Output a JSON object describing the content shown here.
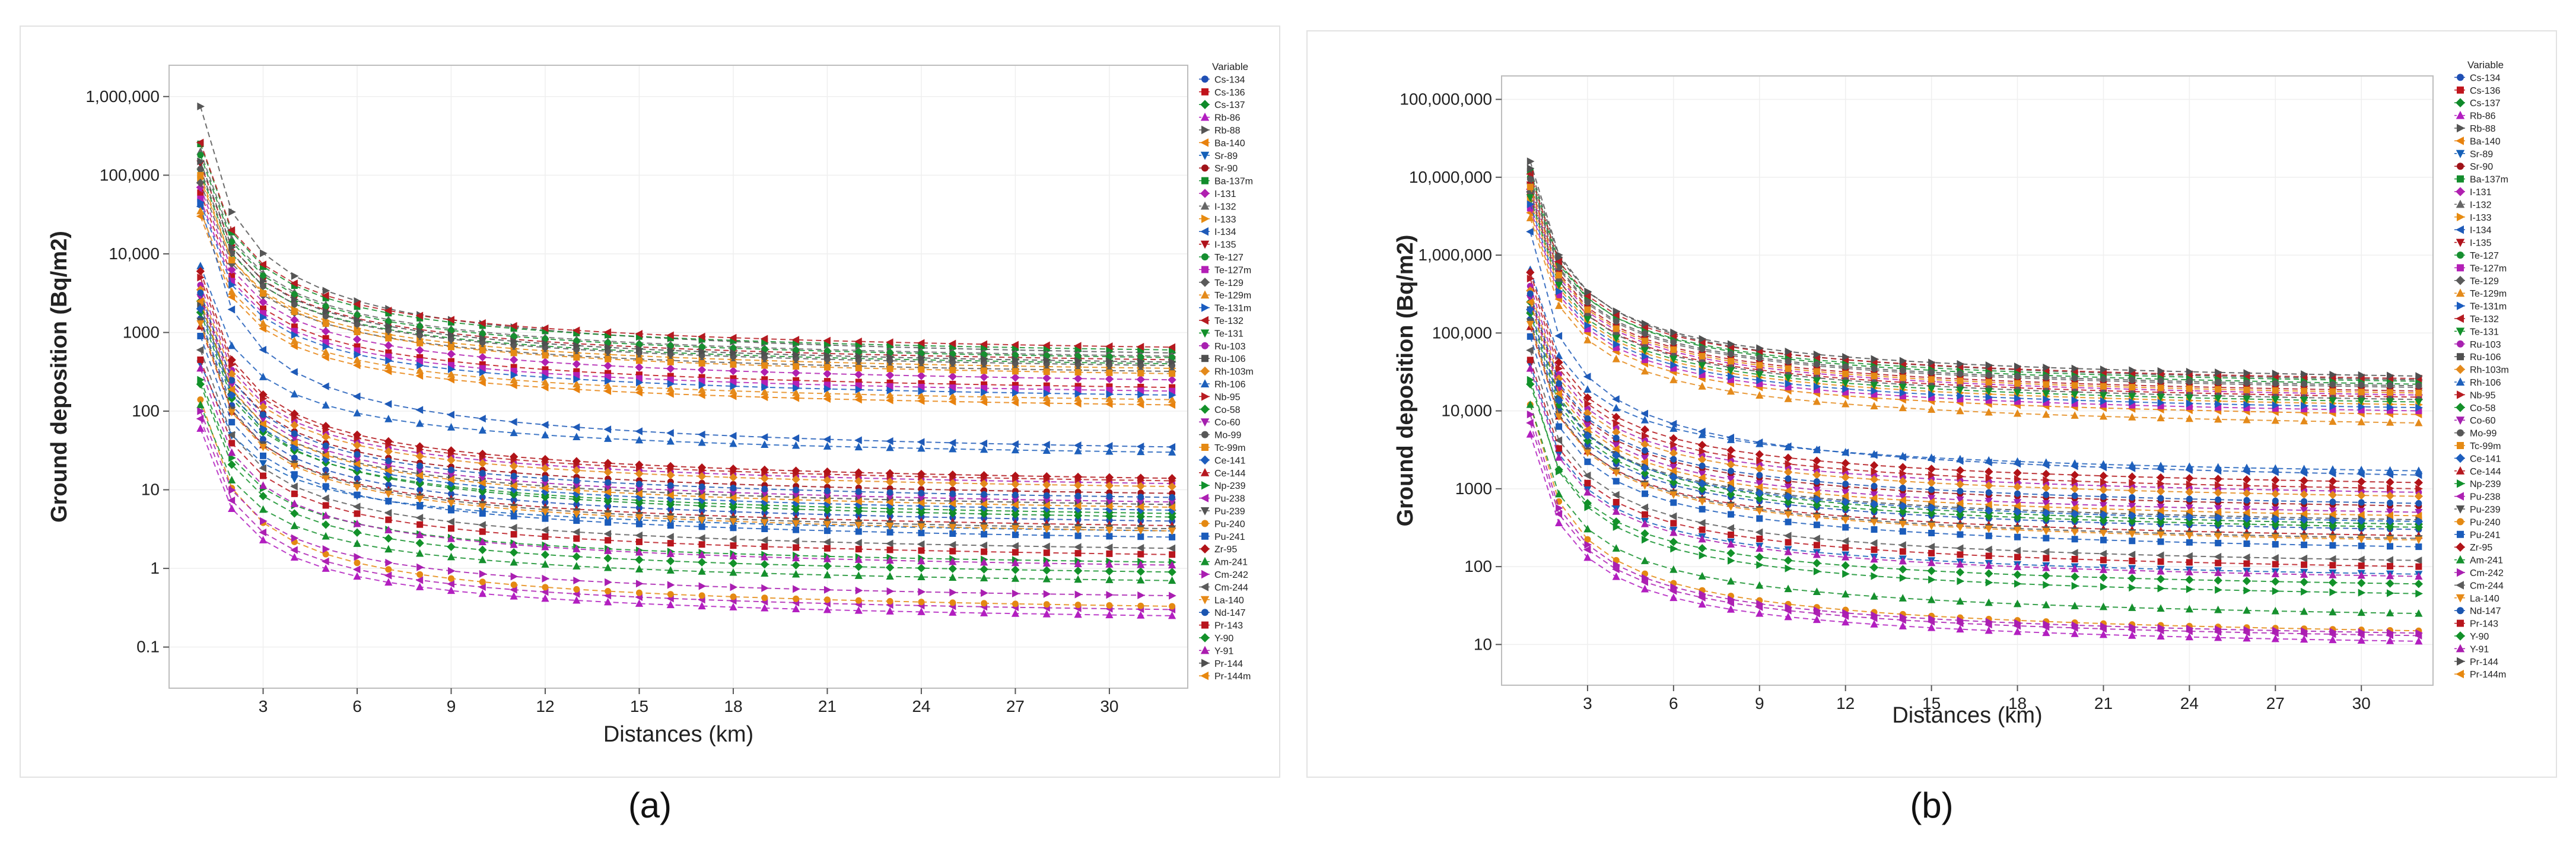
{
  "legend_title": "Variable",
  "axis_x_label": "Distances (km)",
  "axis_y_label": "Ground deposition (Bq/m2)",
  "x_ticks": [
    3,
    6,
    9,
    12,
    15,
    18,
    21,
    24,
    27,
    30
  ],
  "chart_data": [
    {
      "type": "line",
      "panel_label": "(a)",
      "xlabel": "Distances (km)",
      "ylabel": "Ground deposition (Bq/m2)",
      "yscale": "log",
      "xlim": [
        0,
        32.5
      ],
      "ylim": [
        0.03,
        2500000
      ],
      "y_tick_values": [
        0.1,
        1,
        10,
        100,
        1000,
        10000,
        100000,
        1000000
      ],
      "y_tick_labels": [
        "0.1",
        "1",
        "10",
        "100",
        "1000",
        "10,000",
        "100,000",
        "1,000,000"
      ],
      "x": [
        1,
        2,
        3,
        4,
        5,
        6,
        7,
        8,
        9,
        10,
        11,
        12,
        13,
        14,
        15,
        16,
        17,
        18,
        19,
        20,
        21,
        22,
        23,
        24,
        25,
        26,
        27,
        28,
        29,
        30,
        31,
        32
      ],
      "falloff": 0.72,
      "series": [
        {
          "name": "Cs-134",
          "v1": 1500,
          "v32": 4
        },
        {
          "name": "Cs-136",
          "v1": 60000,
          "v32": 200
        },
        {
          "name": "Cs-137",
          "v1": 2500,
          "v32": 4.5
        },
        {
          "name": "Rb-86",
          "v1": 60,
          "v32": 0.25
        },
        {
          "name": "Rb-88",
          "v1": 750000,
          "v32": 550
        },
        {
          "name": "Ba-140",
          "v1": 30000,
          "v32": 120
        },
        {
          "name": "Sr-89",
          "v1": 400,
          "v32": 3
        },
        {
          "name": "Sr-90",
          "v1": 3000,
          "v32": 9
        },
        {
          "name": "Ba-137m",
          "v1": 250000,
          "v32": 600
        },
        {
          "name": "I-131",
          "v1": 70000,
          "v32": 250
        },
        {
          "name": "I-132",
          "v1": 200000,
          "v32": 500
        },
        {
          "name": "I-133",
          "v1": 90000,
          "v32": 350
        },
        {
          "name": "I-134",
          "v1": 40000,
          "v32": 35
        },
        {
          "name": "I-135",
          "v1": 140000,
          "v32": 450
        },
        {
          "name": "Te-127",
          "v1": 180000,
          "v32": 480
        },
        {
          "name": "Te-127m",
          "v1": 50000,
          "v32": 180
        },
        {
          "name": "Te-129",
          "v1": 80000,
          "v32": 320
        },
        {
          "name": "Te-129m",
          "v1": 35000,
          "v32": 140
        },
        {
          "name": "Te-131m",
          "v1": 45000,
          "v32": 160
        },
        {
          "name": "Te-132",
          "v1": 260000,
          "v32": 650
        },
        {
          "name": "Te-131",
          "v1": 110000,
          "v32": 400
        },
        {
          "name": "Ru-103",
          "v1": 4000,
          "v32": 12
        },
        {
          "name": "Ru-106",
          "v1": 2200,
          "v32": 6.5
        },
        {
          "name": "Rh-103m",
          "v1": 3500,
          "v32": 11
        },
        {
          "name": "Rh-106",
          "v1": 7000,
          "v32": 30
        },
        {
          "name": "Nb-95",
          "v1": 5000,
          "v32": 13
        },
        {
          "name": "Co-58",
          "v1": 1800,
          "v32": 5
        },
        {
          "name": "Co-60",
          "v1": 2800,
          "v32": 7
        },
        {
          "name": "Mo-99",
          "v1": 120000,
          "v32": 380
        },
        {
          "name": "Tc-99m",
          "v1": 100000,
          "v32": 300
        },
        {
          "name": "Ce-141",
          "v1": 2000,
          "v32": 5.5
        },
        {
          "name": "Ce-144",
          "v1": 1200,
          "v32": 3.5
        },
        {
          "name": "Np-239",
          "v1": 250,
          "v32": 1.2
        },
        {
          "name": "Pu-238",
          "v1": 80,
          "v32": 0.3
        },
        {
          "name": "Pu-239",
          "v1": 1400,
          "v32": 3.2
        },
        {
          "name": "Pu-240",
          "v1": 140,
          "v32": 0.33
        },
        {
          "name": "Pu-241",
          "v1": 900,
          "v32": 2.5
        },
        {
          "name": "Zr-95",
          "v1": 6000,
          "v32": 14
        },
        {
          "name": "Am-241",
          "v1": 120,
          "v32": 0.7
        },
        {
          "name": "Cm-242",
          "v1": 100,
          "v32": 0.45
        },
        {
          "name": "Cm-244",
          "v1": 600,
          "v32": 1.8
        },
        {
          "name": "La-140",
          "v1": 1300,
          "v32": 3
        },
        {
          "name": "Nd-147",
          "v1": 3200,
          "v32": 8
        },
        {
          "name": "Pr-143",
          "v1": 450,
          "v32": 1.5
        },
        {
          "name": "Y-90",
          "v1": 220,
          "v32": 0.9
        },
        {
          "name": "Y-91",
          "v1": 350,
          "v32": 1.1
        },
        {
          "name": "Pr-144",
          "v1": 150000,
          "v32": 420
        },
        {
          "name": "Pr-144m",
          "v1": 2500,
          "v32": 6
        }
      ]
    },
    {
      "type": "line",
      "panel_label": "(b)",
      "xlabel": "Distances (km)",
      "ylabel": "Ground deposition (Bq/m2)",
      "yscale": "log",
      "xlim": [
        0,
        32.5
      ],
      "ylim": [
        3,
        200000000
      ],
      "y_tick_values": [
        10,
        100,
        1000,
        10000,
        100000,
        1000000,
        10000000,
        100000000
      ],
      "y_tick_labels": [
        "10",
        "100",
        "1000",
        "10,000",
        "100,000",
        "1,000,000",
        "10,000,000",
        "100,000,000"
      ],
      "x": [
        1,
        2,
        3,
        4,
        5,
        6,
        7,
        8,
        9,
        10,
        11,
        12,
        13,
        14,
        15,
        16,
        17,
        18,
        19,
        20,
        21,
        22,
        23,
        24,
        25,
        26,
        27,
        28,
        29,
        30,
        31,
        32
      ],
      "falloff": 0.72,
      "series": [
        {
          "name": "Cs-134",
          "v1": 150000,
          "v32": 300
        },
        {
          "name": "Cs-136",
          "v1": 6000000,
          "v32": 15000
        },
        {
          "name": "Cs-137",
          "v1": 250000,
          "v32": 350
        },
        {
          "name": "Rb-86",
          "v1": 5000,
          "v32": 11
        },
        {
          "name": "Rb-88",
          "v1": 16000000,
          "v32": 25000
        },
        {
          "name": "Ba-140",
          "v1": 3500000,
          "v32": 9000
        },
        {
          "name": "Sr-89",
          "v1": 40000,
          "v32": 80
        },
        {
          "name": "Sr-90",
          "v1": 300000,
          "v32": 600
        },
        {
          "name": "Ba-137m",
          "v1": 12000000,
          "v32": 22000
        },
        {
          "name": "I-131",
          "v1": 7000000,
          "v32": 16000
        },
        {
          "name": "I-132",
          "v1": 9000000,
          "v32": 20000
        },
        {
          "name": "I-133",
          "v1": 5000000,
          "v32": 12000
        },
        {
          "name": "I-134",
          "v1": 2000000,
          "v32": 1500
        },
        {
          "name": "I-135",
          "v1": 8000000,
          "v32": 18000
        },
        {
          "name": "Te-127",
          "v1": 10000000,
          "v32": 24000
        },
        {
          "name": "Te-127m",
          "v1": 4000000,
          "v32": 10000
        },
        {
          "name": "Te-129",
          "v1": 6500000,
          "v32": 14000
        },
        {
          "name": "Te-129m",
          "v1": 3000000,
          "v32": 7000
        },
        {
          "name": "Te-131m",
          "v1": 4500000,
          "v32": 11000
        },
        {
          "name": "Te-132",
          "v1": 11000000,
          "v32": 26000
        },
        {
          "name": "Te-131",
          "v1": 5500000,
          "v32": 13000
        },
        {
          "name": "Ru-103",
          "v1": 400000,
          "v32": 900
        },
        {
          "name": "Ru-106",
          "v1": 200000,
          "v32": 400
        },
        {
          "name": "Rh-103m",
          "v1": 350000,
          "v32": 800
        },
        {
          "name": "Rh-106",
          "v1": 650000,
          "v32": 1700
        },
        {
          "name": "Nb-95",
          "v1": 500000,
          "v32": 1000
        },
        {
          "name": "Co-58",
          "v1": 180000,
          "v32": 320
        },
        {
          "name": "Co-60",
          "v1": 280000,
          "v32": 500
        },
        {
          "name": "Mo-99",
          "v1": 9500000,
          "v32": 21000
        },
        {
          "name": "Tc-99m",
          "v1": 7500000,
          "v32": 17000
        },
        {
          "name": "Ce-141",
          "v1": 200000,
          "v32": 380
        },
        {
          "name": "Ce-144",
          "v1": 120000,
          "v32": 250
        },
        {
          "name": "Np-239",
          "v1": 25000,
          "v32": 45
        },
        {
          "name": "Pu-238",
          "v1": 7000,
          "v32": 13
        },
        {
          "name": "Pu-239",
          "v1": 140000,
          "v32": 230
        },
        {
          "name": "Pu-240",
          "v1": 12000,
          "v32": 15
        },
        {
          "name": "Pu-241",
          "v1": 90000,
          "v32": 180
        },
        {
          "name": "Zr-95",
          "v1": 600000,
          "v32": 1200
        },
        {
          "name": "Am-241",
          "v1": 12000,
          "v32": 25
        },
        {
          "name": "Cm-242",
          "v1": 9000,
          "v32": 14
        },
        {
          "name": "Cm-244",
          "v1": 60000,
          "v32": 120
        },
        {
          "name": "La-140",
          "v1": 130000,
          "v32": 220
        },
        {
          "name": "Nd-147",
          "v1": 320000,
          "v32": 650
        },
        {
          "name": "Pr-143",
          "v1": 45000,
          "v32": 100
        },
        {
          "name": "Y-90",
          "v1": 22000,
          "v32": 60
        },
        {
          "name": "Y-91",
          "v1": 35000,
          "v32": 75
        },
        {
          "name": "Pr-144",
          "v1": 13000000,
          "v32": 28000
        },
        {
          "name": "Pr-144m",
          "v1": 250000,
          "v32": 450
        }
      ]
    }
  ],
  "legend_styles": [
    {
      "color": "#1f4fb4",
      "marker": "circle"
    },
    {
      "color": "#c0141c",
      "marker": "square"
    },
    {
      "color": "#0f8a2a",
      "marker": "diamond"
    },
    {
      "color": "#b21ec0",
      "marker": "triangle-up"
    },
    {
      "color": "#555555",
      "marker": "triangle-right"
    },
    {
      "color": "#e8820e",
      "marker": "triangle-left"
    },
    {
      "color": "#1560b8",
      "marker": "triangle-down"
    },
    {
      "color": "#a01218",
      "marker": "circle"
    },
    {
      "color": "#138c2c",
      "marker": "square"
    },
    {
      "color": "#b020b0",
      "marker": "diamond"
    },
    {
      "color": "#666666",
      "marker": "triangle-up"
    },
    {
      "color": "#e78b10",
      "marker": "triangle-right"
    },
    {
      "color": "#1e5ab8",
      "marker": "triangle-left"
    },
    {
      "color": "#b0121b",
      "marker": "triangle-down"
    },
    {
      "color": "#168f30",
      "marker": "circle"
    },
    {
      "color": "#b31fb6",
      "marker": "square"
    },
    {
      "color": "#5a5a5a",
      "marker": "diamond"
    },
    {
      "color": "#e48a1a",
      "marker": "triangle-up"
    },
    {
      "color": "#1a5cc0",
      "marker": "triangle-right"
    },
    {
      "color": "#b51a20",
      "marker": "triangle-left"
    },
    {
      "color": "#12902a",
      "marker": "triangle-down"
    },
    {
      "color": "#a821b0",
      "marker": "circle"
    },
    {
      "color": "#505050",
      "marker": "square"
    },
    {
      "color": "#e3891b",
      "marker": "diamond"
    },
    {
      "color": "#1e60bc",
      "marker": "triangle-up"
    },
    {
      "color": "#b81c22",
      "marker": "triangle-right"
    },
    {
      "color": "#139029",
      "marker": "diamond"
    },
    {
      "color": "#a41fae",
      "marker": "triangle-down"
    },
    {
      "color": "#585858",
      "marker": "circle"
    },
    {
      "color": "#e58a14",
      "marker": "square"
    },
    {
      "color": "#1c5dbd",
      "marker": "diamond"
    },
    {
      "color": "#b6171e",
      "marker": "triangle-up"
    },
    {
      "color": "#11912c",
      "marker": "triangle-right"
    },
    {
      "color": "#ad20b3",
      "marker": "triangle-left"
    },
    {
      "color": "#535353",
      "marker": "triangle-down"
    },
    {
      "color": "#e48912",
      "marker": "circle"
    },
    {
      "color": "#1b5cbb",
      "marker": "square"
    },
    {
      "color": "#b11318",
      "marker": "diamond"
    },
    {
      "color": "#15902d",
      "marker": "triangle-up"
    },
    {
      "color": "#a91eb1",
      "marker": "triangle-right"
    },
    {
      "color": "#5c5c5c",
      "marker": "triangle-left"
    },
    {
      "color": "#e68a18",
      "marker": "triangle-down"
    },
    {
      "color": "#1a55b0",
      "marker": "circle"
    },
    {
      "color": "#b8151d",
      "marker": "square"
    },
    {
      "color": "#129129",
      "marker": "diamond"
    },
    {
      "color": "#aa1daf",
      "marker": "triangle-up"
    },
    {
      "color": "#4f4f4f",
      "marker": "triangle-right"
    },
    {
      "color": "#e7880f",
      "marker": "triangle-left"
    }
  ]
}
